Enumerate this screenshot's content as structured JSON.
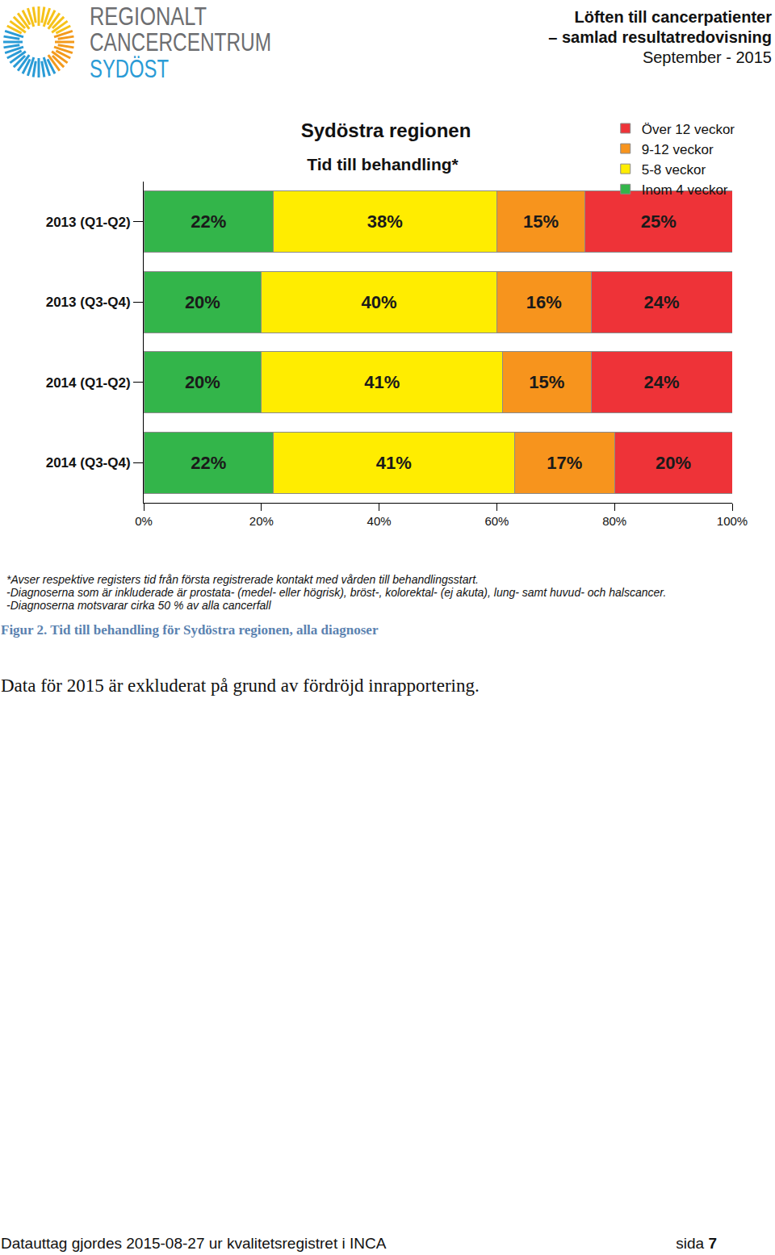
{
  "header": {
    "logo": [
      "REGIONALT",
      "CANCERCENTRUM",
      "SYDÖST"
    ],
    "report_title": [
      "Löften till cancerpatienter",
      "– samlad resultatredovisning"
    ],
    "date": "September - 2015"
  },
  "chart_data": {
    "type": "bar",
    "orientation": "horizontal",
    "stacked": true,
    "data_labels": true,
    "title": "Sydöstra regionen",
    "subtitle": "Tid till behandling*",
    "categories": [
      "2013 (Q1-Q2)",
      "2013 (Q3-Q4)",
      "2014 (Q1-Q2)",
      "2014 (Q3-Q4)"
    ],
    "series": [
      {
        "name": "Inom 4 veckor",
        "color": "#33b54a",
        "values": [
          22,
          20,
          20,
          22
        ],
        "value_labels": [
          "22%",
          "20%",
          "20%",
          "22%"
        ]
      },
      {
        "name": "5-8 veckor",
        "color": "#ffed00",
        "values": [
          38,
          40,
          41,
          41
        ],
        "value_labels": [
          "38%",
          "40%",
          "41%",
          "41%"
        ]
      },
      {
        "name": "9-12 veckor",
        "color": "#f7941d",
        "values": [
          15,
          16,
          15,
          17
        ],
        "value_labels": [
          "15%",
          "16%",
          "15%",
          "17%"
        ]
      },
      {
        "name": "Över 12 veckor",
        "color": "#ee3338",
        "values": [
          25,
          24,
          24,
          20
        ],
        "value_labels": [
          "25%",
          "24%",
          "24%",
          "20%"
        ]
      }
    ],
    "xlim": [
      0,
      100
    ],
    "xticks": [
      {
        "value": 0,
        "label": "0%"
      },
      {
        "value": 20,
        "label": "20%"
      },
      {
        "value": 40,
        "label": "40%"
      },
      {
        "value": 60,
        "label": "60%"
      },
      {
        "value": 80,
        "label": "80%"
      },
      {
        "value": 100,
        "label": "100%"
      }
    ],
    "legend": "top right",
    "grid": false
  },
  "notes": [
    "*Avser respektive registers tid från första registrerade kontakt med vården till behandlingsstart.",
    "-Diagnoserna som är inkluderade är prostata- (medel- eller högrisk), bröst-, kolorektal- (ej akuta), lung- samt huvud- och halscancer.",
    "-Diagnoserna motsvarar cirka 50 % av alla cancerfall"
  ],
  "caption": "Figur 2. Tid till behandling för Sydöstra regionen, alla diagnoser",
  "body": "Data för 2015 är exkluderat på grund av fördröjd inrapportering.",
  "footer": {
    "source": "Datauttag gjordes 2015-08-27 ur kvalitetsregistret i INCA",
    "page_label": "sida",
    "page_number": "7"
  }
}
